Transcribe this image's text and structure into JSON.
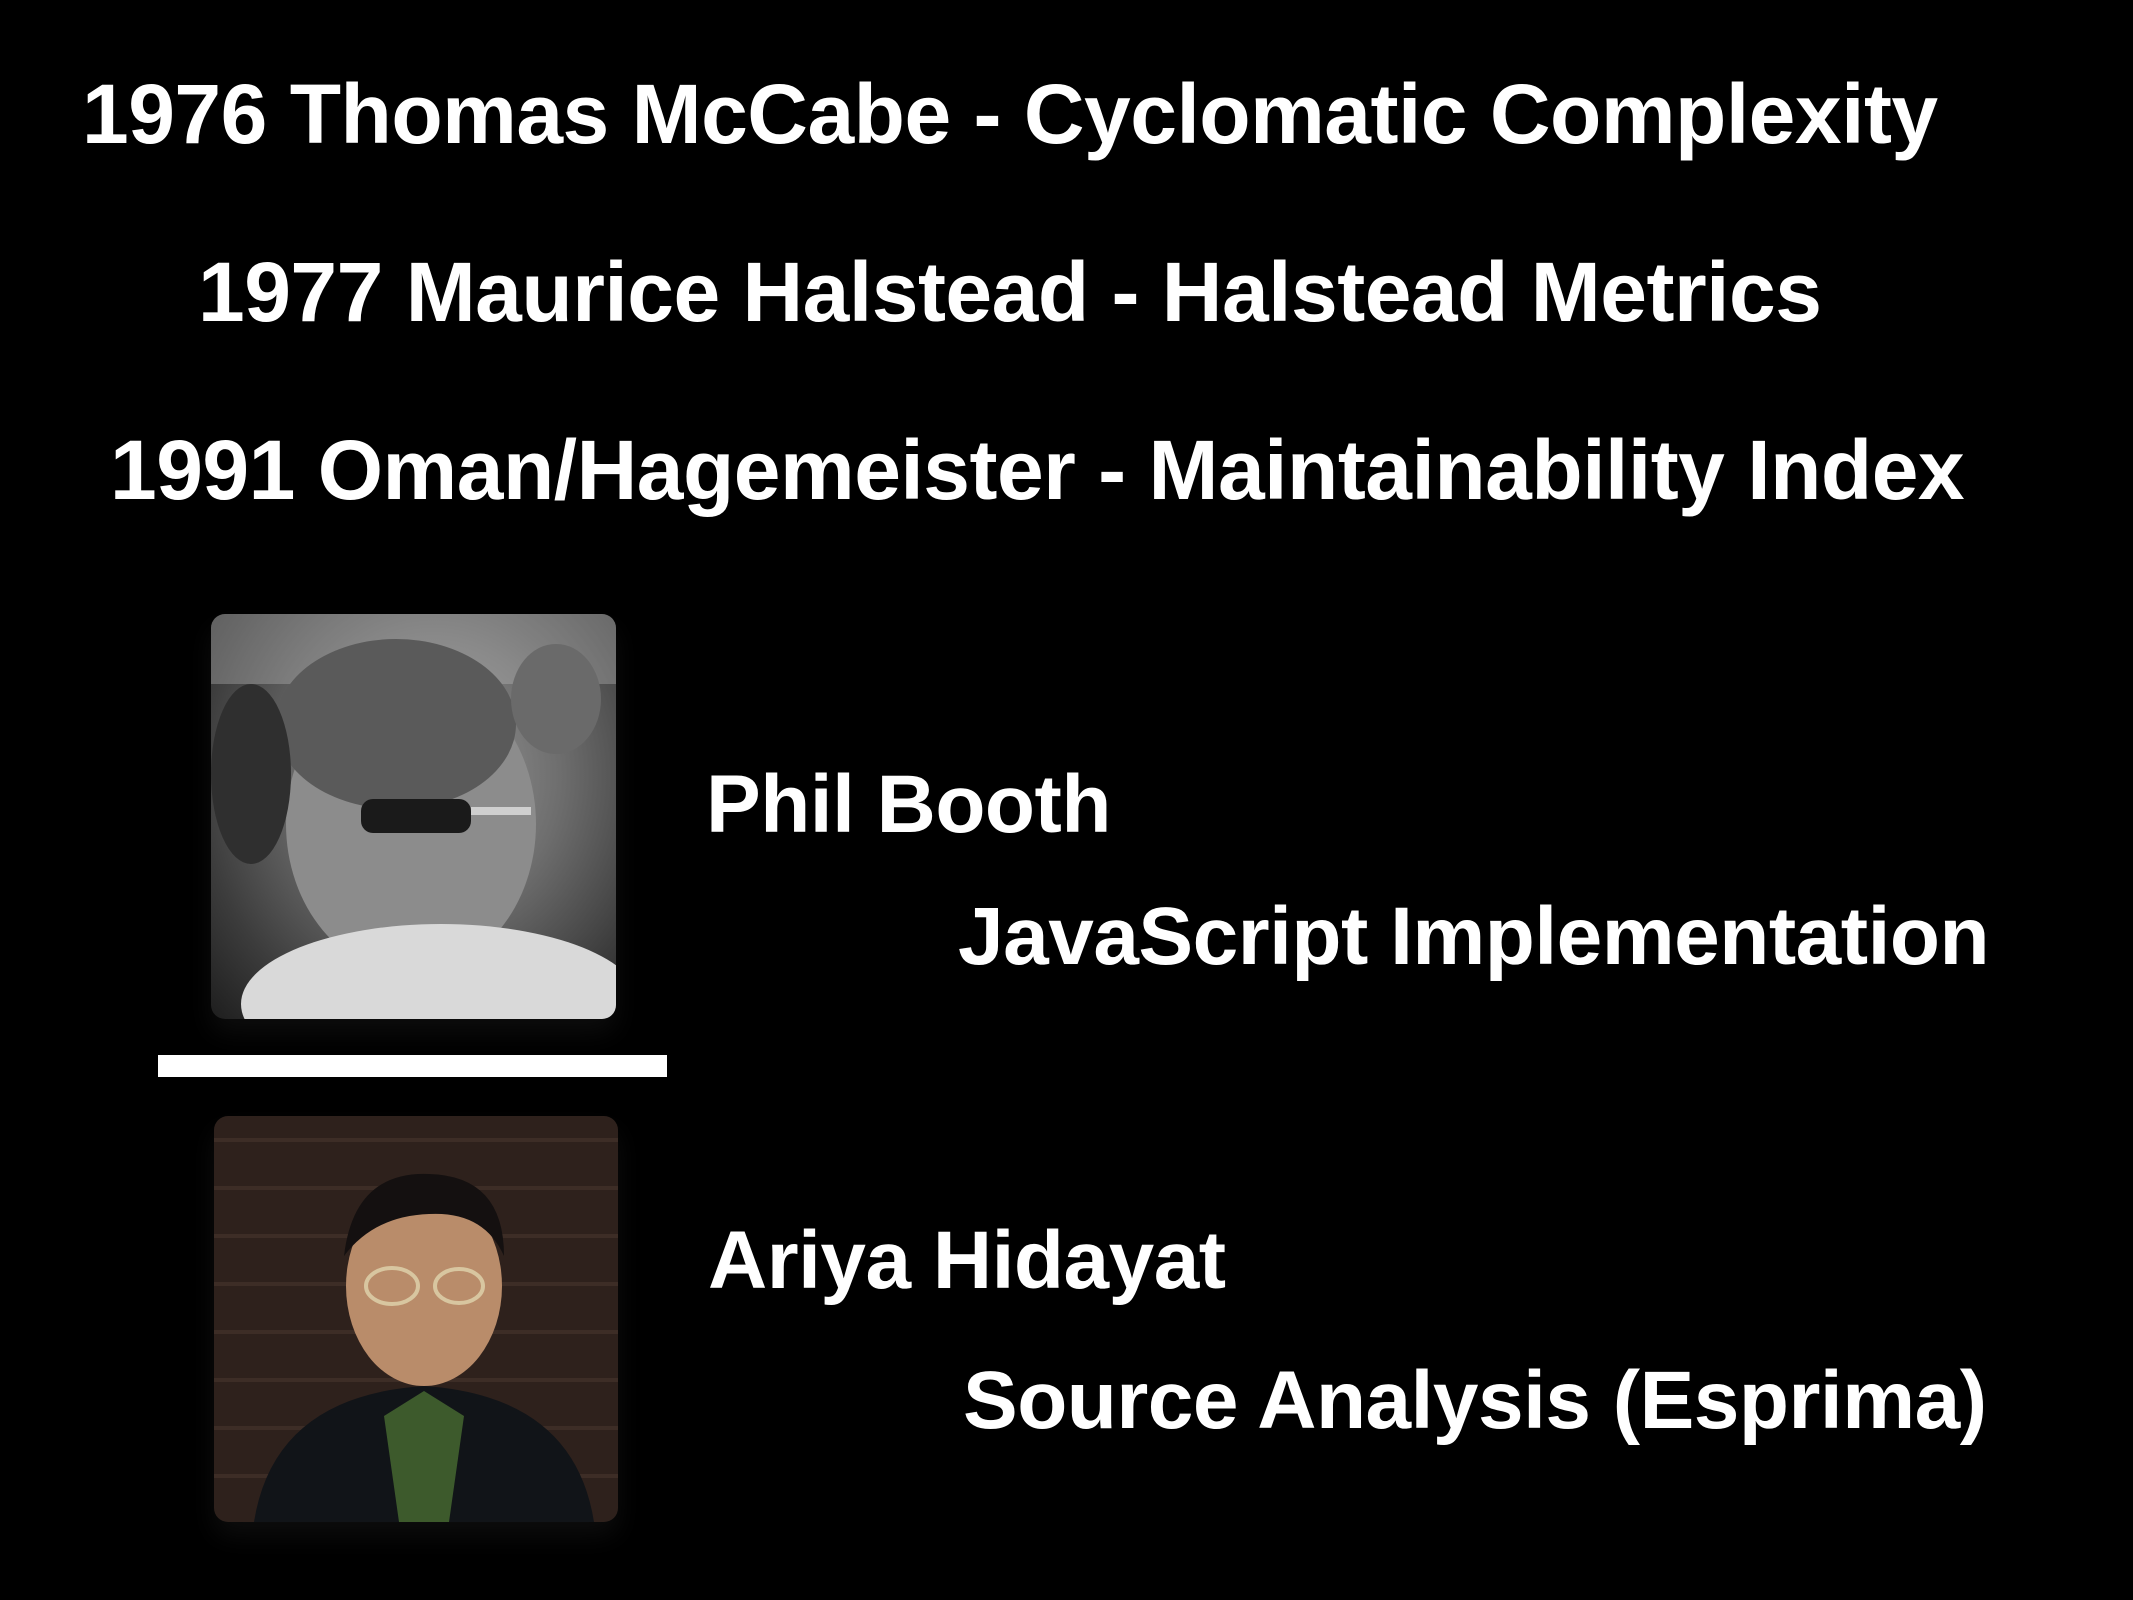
{
  "slide": {
    "lines": [
      "1976 Thomas McCabe - Cyclomatic Complexity",
      "1977 Maurice Halstead - Halstead Metrics",
      "1991 Oman/Hagemeister - Maintainability Index"
    ],
    "people": [
      {
        "name": "Phil Booth",
        "role": "JavaScript Implementation"
      },
      {
        "name": "Ariya Hidayat",
        "role": "Source Analysis (Esprima)"
      }
    ]
  },
  "colors": {
    "background": "#000000",
    "text": "#ffffff",
    "divider": "#ffffff"
  }
}
